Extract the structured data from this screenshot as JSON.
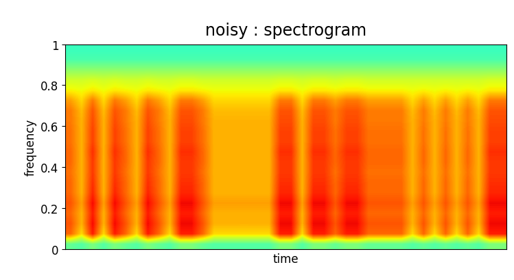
{
  "chart_data": {
    "type": "heatmap",
    "title": "noisy : spectrogram",
    "x_label": "time",
    "y_label": "frequency",
    "xlim": [
      0,
      40
    ],
    "ylim": [
      0,
      1
    ],
    "yticks": [
      0,
      0.2,
      0.4,
      0.6,
      0.8,
      1
    ],
    "tick_labels": "y",
    "color": "jet",
    "value_range": [
      0,
      100
    ],
    "cells": [
      [
        47,
        45,
        50,
        45,
        50,
        47,
        45,
        50,
        47,
        45,
        50,
        50,
        47,
        45,
        45,
        45,
        45,
        45,
        45,
        50,
        50,
        45,
        50,
        50,
        47,
        50,
        50,
        47,
        47,
        47,
        47,
        45,
        47,
        45,
        47,
        45,
        47,
        45,
        50,
        50
      ],
      [
        80,
        68,
        88,
        68,
        88,
        80,
        68,
        88,
        80,
        68,
        88,
        88,
        80,
        68,
        68,
        68,
        68,
        68,
        68,
        88,
        88,
        68,
        88,
        88,
        80,
        88,
        88,
        80,
        80,
        80,
        80,
        68,
        80,
        68,
        80,
        68,
        80,
        68,
        88,
        88
      ],
      [
        82,
        72,
        90,
        72,
        90,
        82,
        72,
        90,
        82,
        72,
        90,
        90,
        82,
        72,
        72,
        72,
        72,
        72,
        72,
        90,
        90,
        72,
        90,
        90,
        82,
        90,
        90,
        82,
        82,
        82,
        82,
        72,
        82,
        72,
        82,
        72,
        82,
        72,
        90,
        90
      ],
      [
        80,
        72,
        88,
        72,
        88,
        80,
        72,
        88,
        80,
        72,
        88,
        88,
        80,
        72,
        72,
        72,
        72,
        72,
        72,
        88,
        88,
        72,
        88,
        88,
        80,
        88,
        88,
        80,
        80,
        80,
        80,
        72,
        80,
        72,
        80,
        72,
        80,
        72,
        88,
        88
      ],
      [
        82,
        74,
        90,
        74,
        90,
        82,
        74,
        90,
        82,
        74,
        90,
        90,
        82,
        74,
        74,
        74,
        74,
        74,
        74,
        90,
        90,
        74,
        90,
        90,
        82,
        90,
        90,
        82,
        82,
        82,
        82,
        74,
        82,
        74,
        82,
        74,
        82,
        74,
        90,
        90
      ],
      [
        80,
        72,
        87,
        72,
        87,
        80,
        72,
        87,
        80,
        72,
        87,
        87,
        80,
        72,
        72,
        72,
        72,
        72,
        72,
        87,
        87,
        72,
        87,
        87,
        80,
        87,
        87,
        80,
        80,
        80,
        80,
        72,
        80,
        72,
        80,
        72,
        80,
        72,
        87,
        87
      ],
      [
        80,
        72,
        86,
        72,
        86,
        80,
        72,
        86,
        80,
        72,
        86,
        86,
        80,
        72,
        72,
        72,
        72,
        72,
        72,
        86,
        86,
        72,
        86,
        86,
        80,
        86,
        86,
        80,
        80,
        80,
        80,
        72,
        80,
        72,
        80,
        72,
        80,
        72,
        86,
        86
      ],
      [
        79,
        72,
        85,
        72,
        85,
        79,
        72,
        85,
        79,
        72,
        85,
        85,
        79,
        72,
        72,
        72,
        72,
        72,
        72,
        85,
        85,
        72,
        85,
        85,
        79,
        85,
        85,
        79,
        79,
        79,
        79,
        72,
        79,
        72,
        79,
        72,
        79,
        72,
        85,
        85
      ],
      [
        80,
        72,
        85,
        72,
        85,
        80,
        72,
        85,
        80,
        72,
        85,
        85,
        80,
        72,
        72,
        72,
        72,
        72,
        72,
        85,
        85,
        72,
        85,
        85,
        80,
        85,
        85,
        80,
        80,
        80,
        80,
        72,
        80,
        72,
        80,
        72,
        80,
        72,
        85,
        85
      ],
      [
        80,
        72,
        86,
        72,
        86,
        80,
        72,
        86,
        80,
        72,
        86,
        86,
        80,
        72,
        72,
        72,
        72,
        72,
        72,
        86,
        86,
        72,
        86,
        86,
        80,
        86,
        86,
        80,
        80,
        80,
        80,
        72,
        80,
        72,
        80,
        72,
        80,
        72,
        86,
        86
      ],
      [
        79,
        72,
        84,
        72,
        84,
        79,
        72,
        84,
        79,
        72,
        84,
        84,
        79,
        72,
        72,
        72,
        72,
        72,
        72,
        84,
        84,
        72,
        84,
        84,
        79,
        84,
        84,
        79,
        79,
        79,
        79,
        72,
        79,
        72,
        79,
        72,
        79,
        72,
        84,
        84
      ],
      [
        79,
        72,
        84,
        72,
        84,
        79,
        72,
        84,
        79,
        72,
        84,
        84,
        79,
        72,
        72,
        72,
        72,
        72,
        72,
        84,
        84,
        72,
        84,
        84,
        79,
        84,
        84,
        79,
        79,
        79,
        79,
        72,
        79,
        72,
        79,
        72,
        79,
        72,
        84,
        84
      ],
      [
        78,
        72,
        83,
        72,
        83,
        78,
        72,
        83,
        78,
        72,
        83,
        83,
        78,
        72,
        72,
        72,
        72,
        72,
        72,
        83,
        83,
        72,
        83,
        83,
        78,
        83,
        83,
        78,
        78,
        78,
        78,
        72,
        78,
        72,
        78,
        72,
        78,
        72,
        83,
        83
      ],
      [
        78,
        71,
        82,
        71,
        82,
        78,
        71,
        82,
        78,
        71,
        82,
        82,
        78,
        71,
        71,
        71,
        71,
        71,
        71,
        82,
        82,
        71,
        82,
        82,
        78,
        82,
        82,
        78,
        78,
        78,
        78,
        71,
        78,
        71,
        78,
        71,
        78,
        71,
        82,
        82
      ],
      [
        74,
        68,
        78,
        68,
        78,
        74,
        68,
        78,
        74,
        68,
        78,
        78,
        74,
        68,
        68,
        68,
        68,
        68,
        68,
        78,
        78,
        68,
        78,
        78,
        74,
        78,
        78,
        74,
        74,
        74,
        74,
        68,
        74,
        68,
        74,
        68,
        74,
        68,
        78,
        78
      ],
      [
        65,
        64,
        66,
        64,
        66,
        65,
        64,
        66,
        65,
        64,
        66,
        66,
        65,
        64,
        64,
        64,
        64,
        64,
        64,
        66,
        66,
        64,
        66,
        66,
        65,
        66,
        66,
        65,
        65,
        65,
        65,
        64,
        65,
        64,
        65,
        64,
        65,
        64,
        66,
        66
      ],
      [
        60,
        60,
        61,
        60,
        61,
        60,
        60,
        61,
        60,
        60,
        61,
        61,
        60,
        60,
        60,
        60,
        60,
        60,
        60,
        61,
        61,
        60,
        61,
        61,
        60,
        61,
        61,
        60,
        60,
        60,
        60,
        60,
        60,
        60,
        60,
        60,
        60,
        60,
        61,
        61
      ],
      [
        52,
        52,
        52,
        52,
        52,
        52,
        52,
        52,
        52,
        52,
        52,
        52,
        52,
        52,
        52,
        52,
        52,
        52,
        52,
        52,
        52,
        52,
        52,
        52,
        52,
        52,
        52,
        52,
        52,
        52,
        52,
        52,
        52,
        52,
        52,
        52,
        52,
        52,
        52,
        52
      ],
      [
        44,
        44,
        44,
        44,
        44,
        44,
        44,
        44,
        44,
        44,
        44,
        44,
        44,
        44,
        44,
        44,
        44,
        44,
        44,
        44,
        44,
        44,
        44,
        44,
        44,
        44,
        44,
        44,
        44,
        44,
        44,
        44,
        44,
        44,
        44,
        44,
        44,
        44,
        44,
        44
      ],
      [
        42,
        42,
        42,
        42,
        42,
        42,
        42,
        42,
        42,
        42,
        42,
        42,
        42,
        42,
        42,
        42,
        42,
        42,
        42,
        42,
        42,
        42,
        42,
        42,
        42,
        42,
        42,
        42,
        42,
        42,
        42,
        42,
        42,
        42,
        42,
        42,
        42,
        42,
        42,
        42
      ]
    ]
  }
}
